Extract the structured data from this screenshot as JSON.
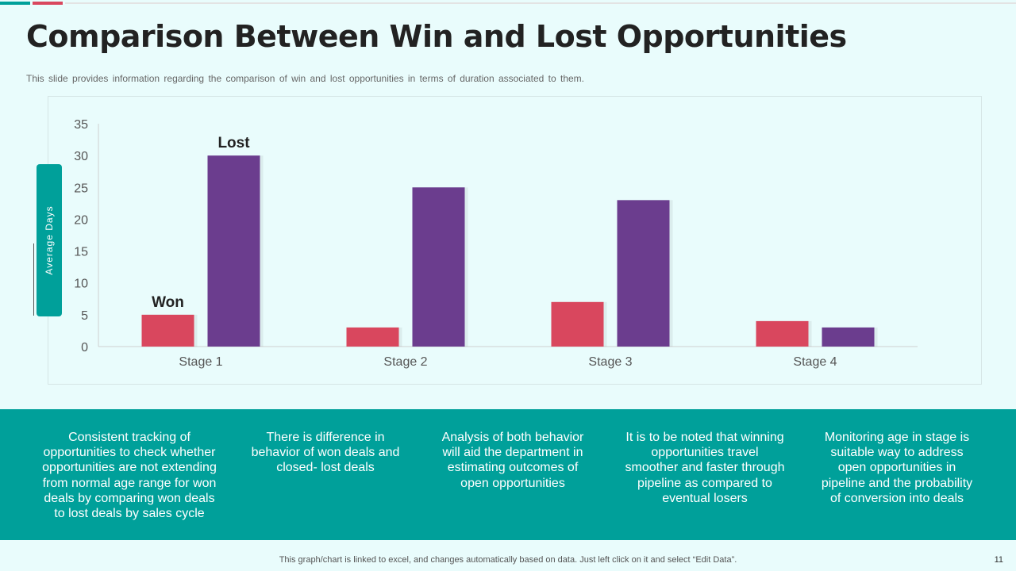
{
  "header": {
    "title": "Comparison Between Win and Lost Opportunities",
    "subtitle": "This slide provides information regarding the comparison of win and lost opportunities in terms of duration associated to them."
  },
  "colors": {
    "accent_teal": "#00a09a",
    "won": "#d9475e",
    "lost": "#6b3d8e",
    "background": "#e9fcfc"
  },
  "chart_data": {
    "type": "bar",
    "title": "",
    "xlabel": "",
    "ylabel": "Average Days",
    "categories": [
      "Stage 1",
      "Stage 2",
      "Stage 3",
      "Stage 4"
    ],
    "series": [
      {
        "name": "Won",
        "values": [
          5,
          3,
          7,
          4
        ]
      },
      {
        "name": "Lost",
        "values": [
          30,
          25,
          23,
          3
        ]
      }
    ],
    "ylim": [
      0,
      35
    ],
    "yticks": [
      0,
      5,
      10,
      15,
      20,
      25,
      30,
      35
    ],
    "grid": false,
    "legend": "inline labels above Stage 1 bars"
  },
  "notes": [
    "Consistent tracking of opportunities to check whether opportunities are not extending from normal age range for won deals by comparing won deals to lost deals by sales cycle",
    "There is difference in behavior of won deals and closed- lost deals",
    "Analysis of both behavior will aid the department in estimating outcomes of open opportunities",
    "It is to be noted that winning opportunities travel smoother and faster through pipeline as compared to eventual losers",
    "Monitoring age in stage is suitable way to address open opportunities in pipeline and the probability of conversion into deals"
  ],
  "footer": {
    "text": "This graph/chart is linked to excel, and changes automatically based on data. Just left click on it and select “Edit Data”.",
    "page_number": "11"
  }
}
